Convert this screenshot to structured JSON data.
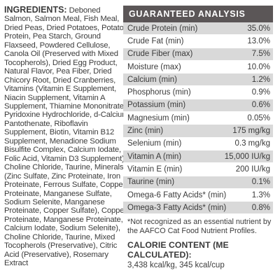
{
  "ingredients": {
    "heading": "INGREDIENTS:",
    "lines": [
      "Salmon, Salmon Meal, Fish Meal,",
      "Dried Peas, Dried Potatoes, Potato",
      "Protein, Pea Starch, Ground",
      "Flaxseed, Powdered Cellulose,",
      "Canola Oil (Preserved with Mixed",
      "Tocopherols), Dried Egg Product,",
      "Natural Flavor, Pea Fiber, Dried",
      "Chicory Root, Dried Cranberries,",
      "Vitamins (Vitamin E Supplement,",
      "Niacin Supplement, Vitamin A",
      "Supplement, Thiamine Mononitrate,",
      "Pyridoxine Hydrochloride, d-Calcium",
      "Pantothenate, Riboflavin",
      "Supplement, Biotin, Vitamin B12",
      "Supplement, Menadione Sodium",
      "Bisulfite Complex, Calcium Iodate,",
      "Folic Acid, Vitamin D3 Supplement),",
      "Choline Chloride, Taurine,  Minerals",
      "(Zinc Sulfate, Zinc Proteinate, Iron",
      "Proteinate, Ferrous Sulfate, Copper",
      "Proteinate, Manganese Sulfate,",
      "Sodium Selenite, Manganese",
      "Proteinate, Copper Sulfate),  Copper",
      "Proteinate, Manganese Proteinate,",
      "Calcium Iodate, Sodium Selenite),",
      "Choline Chloride, Taurine, Mixed",
      "Tocopherols (Preservative), Citric",
      "Acid (Preservative), Rosemary",
      "Extract"
    ],
    "first_line_rest": "Deboned"
  },
  "analysis": {
    "title": "GUARANTEED ANALYSIS",
    "rows": [
      {
        "label": "Crude Protein (min)",
        "value": "35.0%"
      },
      {
        "label": "Crude Fat (min)",
        "value": "13.0%"
      },
      {
        "label": "Crude Fiber (max)",
        "value": "7.5%"
      },
      {
        "label": "Moisture (max)",
        "value": "10.0%"
      },
      {
        "label": "Calcium (min)",
        "value": "1.2%"
      },
      {
        "label": "Phosphorus (min)",
        "value": "0.9%"
      },
      {
        "label": "Potassium (min)",
        "value": "0.6%"
      },
      {
        "label": "Magnesium (min)",
        "value": "0.05%"
      },
      {
        "label": "Zinc (min)",
        "value": "175 mg/kg"
      },
      {
        "label": "Selenium (min)",
        "value": "0.3 mg/kg"
      },
      {
        "label": "Vitamin A (min)",
        "value": "15,000 IU/kg"
      },
      {
        "label": "Vitamin E (min)",
        "value": "200 IU/kg"
      },
      {
        "label": "Taurine (min)",
        "value": "0.1%"
      },
      {
        "label": "Omega-6 Fatty Acids* (min)",
        "value": "1.3%"
      },
      {
        "label": "Omega-3 Fatty Acids* (min)",
        "value": "0.8%"
      }
    ],
    "footnote_line1": "*Not recognized as an essential nutrient by",
    "footnote_line2": "the AAFCO Cat Food Nutrient Profiles."
  },
  "calorie": {
    "title": "CALORIE CONTENT (ME CALCULATED):",
    "value": "3,438 kcal/kg, 345 kcal/cup"
  },
  "colors": {
    "header_bg": "#5b5657",
    "row_alt_bg": "#d9d9d9",
    "text": "#3a3a3a"
  }
}
